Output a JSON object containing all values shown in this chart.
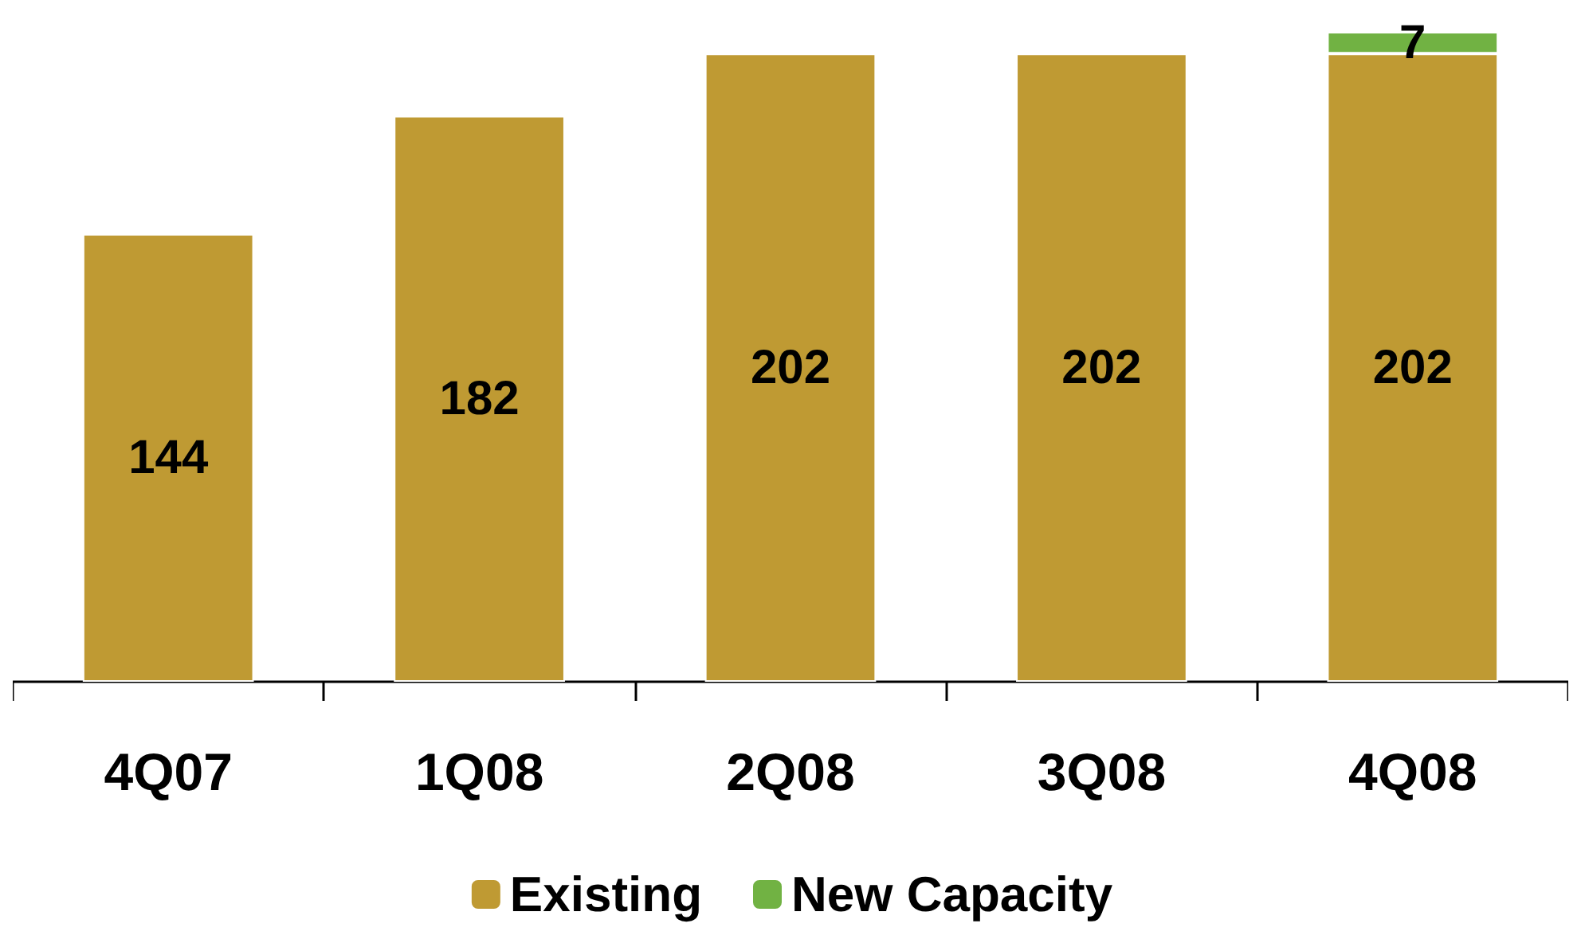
{
  "chart_data": {
    "type": "bar",
    "stacked": true,
    "data_labels": true,
    "legend": "bottom",
    "categories": [
      "4Q07",
      "1Q08",
      "2Q08",
      "3Q08",
      "4Q08"
    ],
    "series": [
      {
        "name": "Existing",
        "color": "#bf9a33",
        "values": [
          144,
          182,
          202,
          202,
          202
        ]
      },
      {
        "name": "New Capacity",
        "color": "#71b243",
        "values": [
          null,
          null,
          null,
          null,
          7
        ]
      }
    ]
  }
}
